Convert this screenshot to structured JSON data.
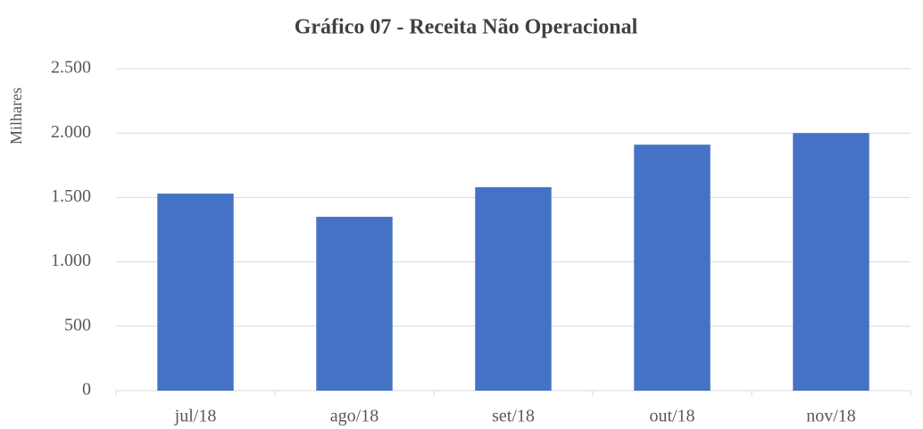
{
  "chart_data": {
    "type": "bar",
    "title": "Gráfico 07 - Receita Não Operacional",
    "y_label": "Milhares",
    "categories": [
      "jul/18",
      "ago/18",
      "set/18",
      "out/18",
      "nov/18"
    ],
    "values": [
      1530,
      1350,
      1580,
      1910,
      2000
    ],
    "color": "#4472c4",
    "ylim": [
      0,
      2500
    ],
    "yticks": [
      0,
      500,
      {
        "value": 1000,
        "label": "1.000"
      },
      {
        "value": 1500,
        "label": "1.500"
      },
      {
        "value": 2000,
        "label": "2.000"
      },
      {
        "value": 2500,
        "label": "2.500"
      }
    ],
    "grid": true
  }
}
